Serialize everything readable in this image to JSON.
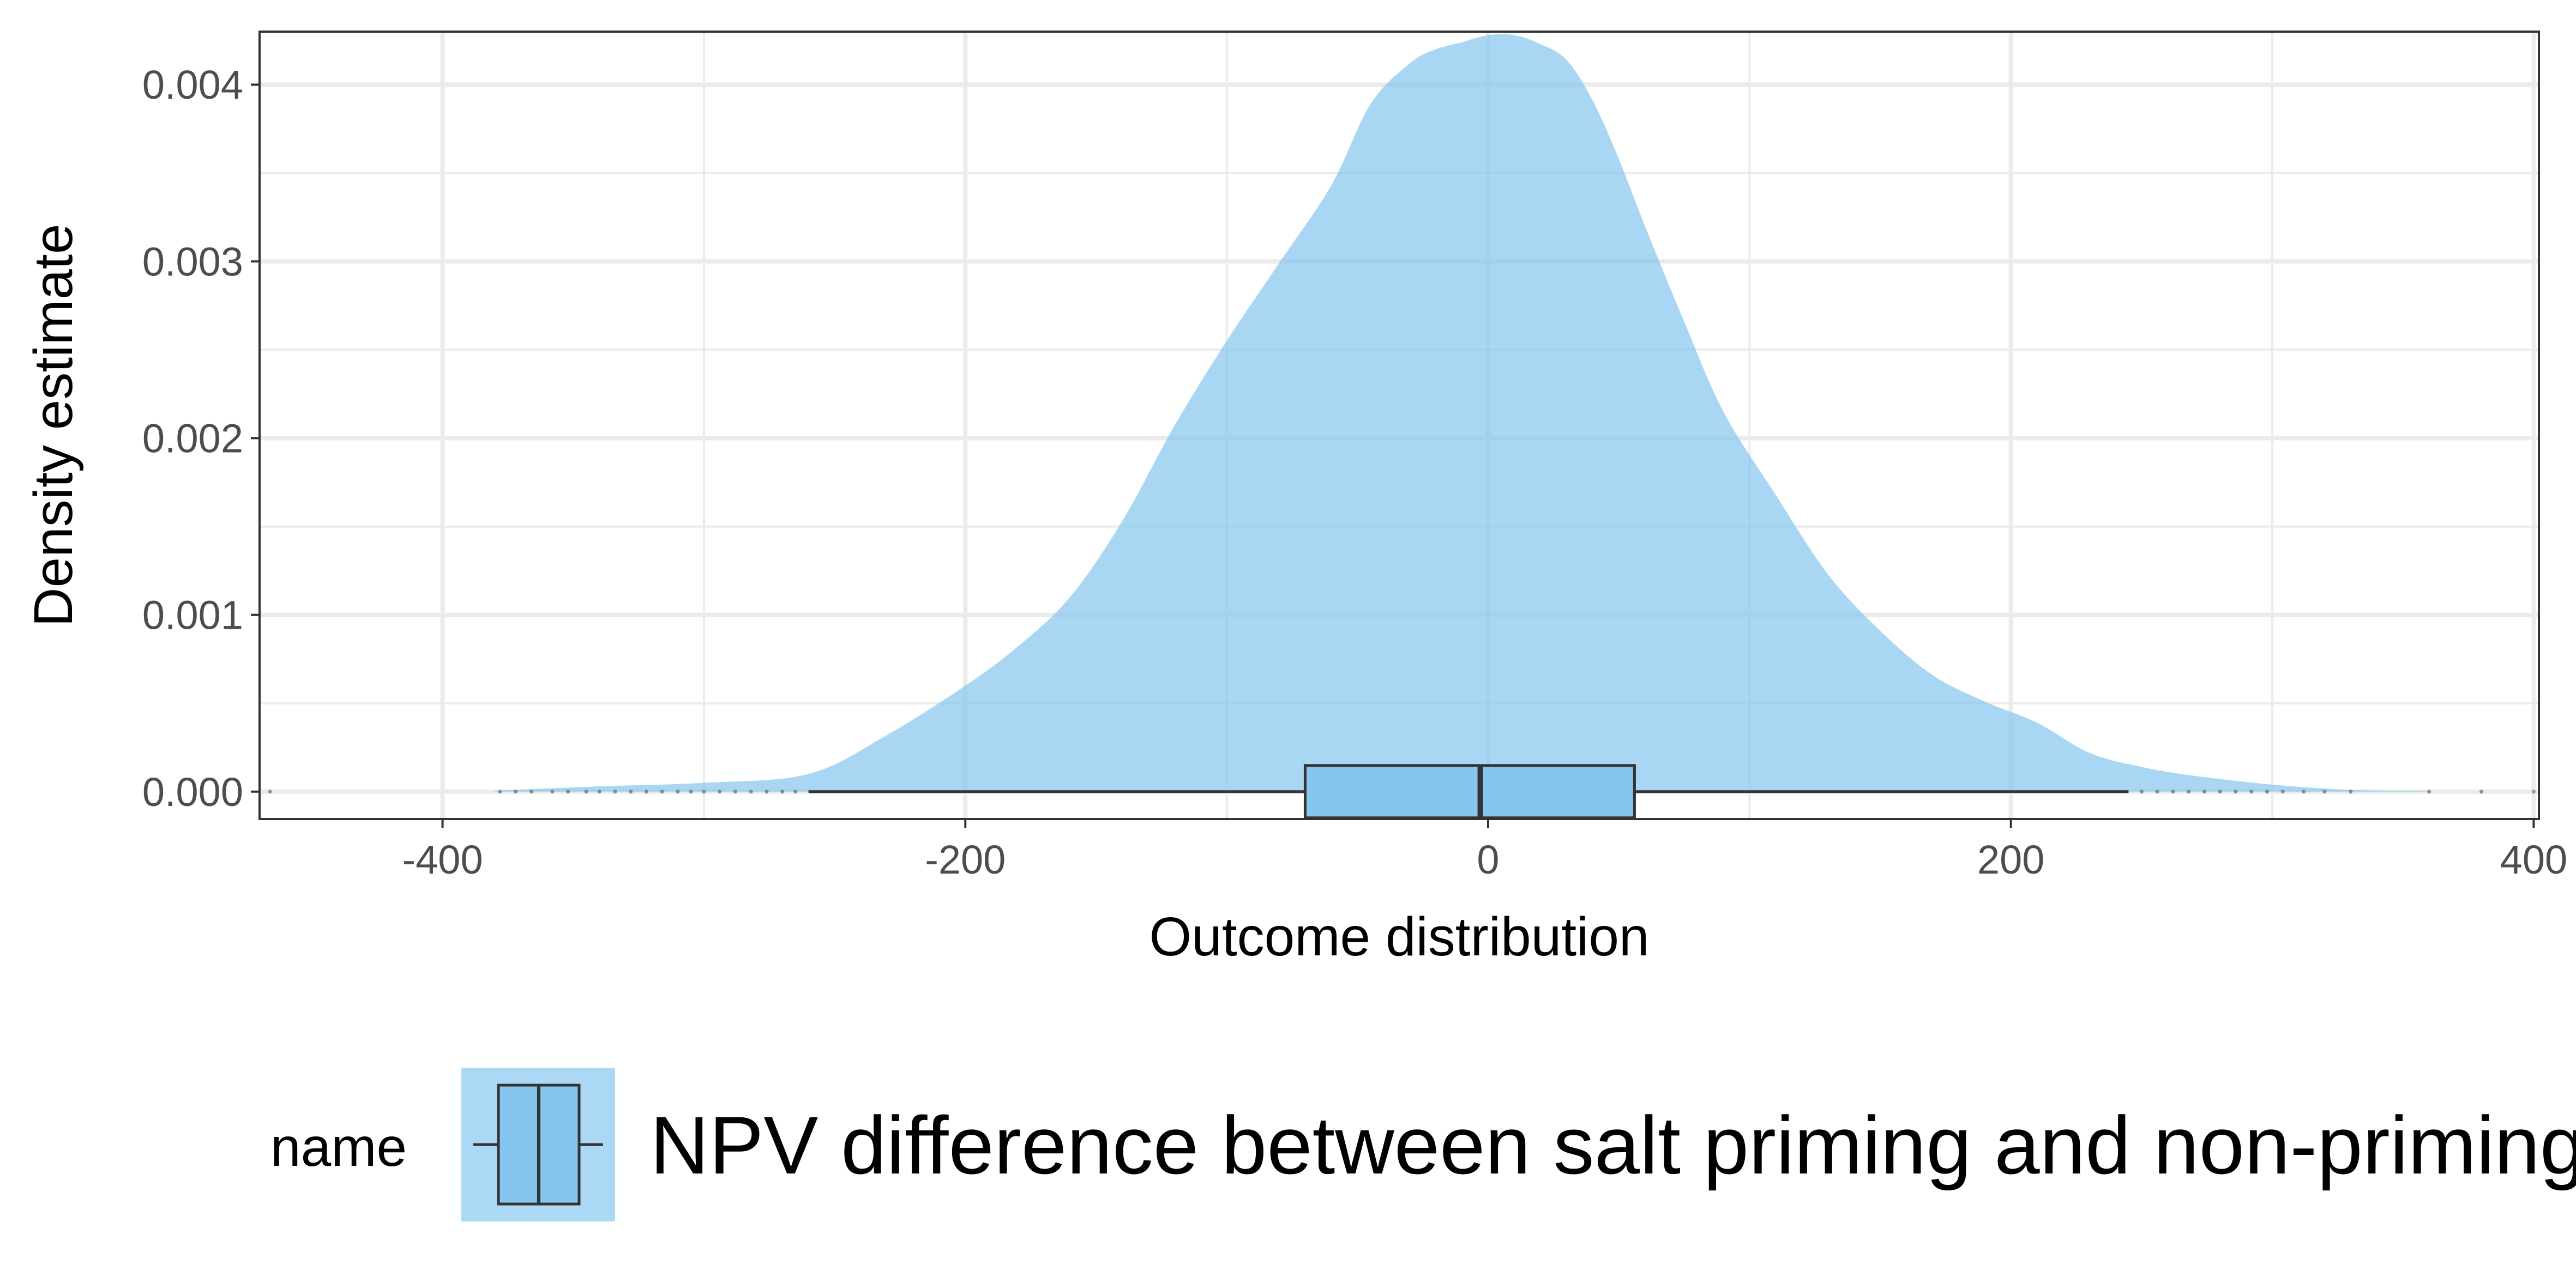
{
  "chart_data": {
    "type": "area",
    "title": "",
    "xlabel": "Outcome distribution",
    "ylabel": "Density estimate",
    "xlim": [
      -470,
      402
    ],
    "ylim": [
      -0.000155,
      0.0043
    ],
    "x_ticks": [
      -400,
      -200,
      0,
      200,
      400
    ],
    "x_tick_labels": [
      "-400",
      "-200",
      "0",
      "200",
      "400"
    ],
    "y_ticks": [
      0,
      0.001,
      0.002,
      0.003,
      0.004
    ],
    "y_tick_labels": [
      "0.000",
      "0.001",
      "0.002",
      "0.003",
      "0.004"
    ],
    "grid": true,
    "legend": {
      "position": "bottom",
      "title": "name",
      "entries": [
        "NPV difference between salt priming and non-priming"
      ]
    },
    "colors": {
      "density_fill": "#85c6ee",
      "box_fill": "#85c6ee",
      "legend_key_bg": "#abd8f4",
      "outline": "#333333"
    },
    "series": [
      {
        "name": "NPV difference between salt priming and non-priming",
        "density": {
          "x": [
            -380,
            -340,
            -300,
            -260,
            -230,
            -200,
            -180,
            -160,
            -140,
            -120,
            -100,
            -80,
            -60,
            -45,
            -30,
            -20,
            -10,
            0,
            10,
            20,
            30,
            40,
            50,
            60,
            75,
            90,
            110,
            130,
            150,
            170,
            190,
            210,
            230,
            250,
            270,
            300,
            330,
            360
          ],
          "y": [
            5e-06,
            3e-05,
            5e-05,
            0.0001,
            0.00032,
            0.0006,
            0.00082,
            0.0011,
            0.00153,
            0.00207,
            0.00255,
            0.00299,
            0.00343,
            0.00389,
            0.00412,
            0.0042,
            0.00424,
            0.00428,
            0.00428,
            0.00423,
            0.00414,
            0.00391,
            0.00358,
            0.0032,
            0.00266,
            0.00215,
            0.00168,
            0.00123,
            0.00091,
            0.00066,
            0.00051,
            0.00039,
            0.00022,
            0.00014,
            9e-05,
            4e-05,
            1e-05,
            2e-06
          ]
        },
        "box": {
          "lower_whisker": -260,
          "q1": -70,
          "median": -3,
          "q3": 56,
          "upper_whisker": 245
        },
        "outliers": [
          -466,
          -378,
          -372,
          -366,
          -358,
          -352,
          -345,
          -340,
          -334,
          -328,
          -322,
          -316,
          -310,
          -305,
          -300,
          -294,
          -288,
          -282,
          -276,
          -270,
          -265,
          250,
          256,
          262,
          268,
          274,
          280,
          286,
          292,
          298,
          304,
          312,
          320,
          330,
          360,
          380,
          400
        ]
      }
    ]
  }
}
